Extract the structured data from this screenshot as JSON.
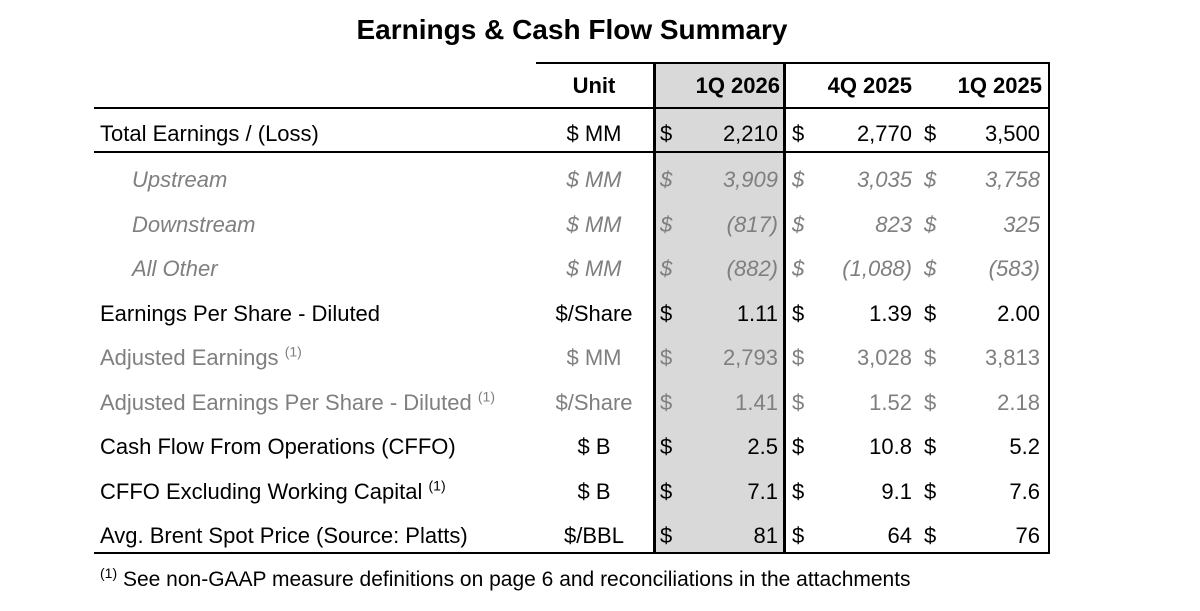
{
  "title": "Earnings & Cash Flow Summary",
  "headers": {
    "unit": "Unit",
    "col1": "1Q 2026",
    "col2": "4Q 2025",
    "col3": "1Q 2025"
  },
  "rows": [
    {
      "label": "Total Earnings / (Loss)",
      "sup": "",
      "unit": "$ MM",
      "d": "$",
      "v1": "2,210",
      "v2": "2,770",
      "v3": "3,500",
      "style": "normal"
    },
    {
      "label": "Upstream",
      "sup": "",
      "unit": "$ MM",
      "d": "$",
      "v1": "3,909",
      "v2": "3,035",
      "v3": "3,758",
      "style": "sub"
    },
    {
      "label": "Downstream",
      "sup": "",
      "unit": "$ MM",
      "d": "$",
      "v1": "(817)",
      "v2": "823",
      "v3": "325",
      "style": "sub"
    },
    {
      "label": "All Other",
      "sup": "",
      "unit": "$ MM",
      "d": "$",
      "v1": "(882)",
      "v2": "(1,088)",
      "v3": "(583)",
      "style": "sub"
    },
    {
      "label": "Earnings Per Share - Diluted",
      "sup": "",
      "unit": "$/Share",
      "d": "$",
      "v1": "1.11",
      "v2": "1.39",
      "v3": "2.00",
      "style": "normal"
    },
    {
      "label": "Adjusted Earnings",
      "sup": "(1)",
      "unit": "$ MM",
      "d": "$",
      "v1": "2,793",
      "v2": "3,028",
      "v3": "3,813",
      "style": "grey"
    },
    {
      "label": "Adjusted Earnings Per Share - Diluted",
      "sup": "(1)",
      "unit": "$/Share",
      "d": "$",
      "v1": "1.41",
      "v2": "1.52",
      "v3": "2.18",
      "style": "grey"
    },
    {
      "label": "Cash Flow From Operations (CFFO)",
      "sup": "",
      "unit": "$ B",
      "d": "$",
      "v1": "2.5",
      "v2": "10.8",
      "v3": "5.2",
      "style": "normal"
    },
    {
      "label": "CFFO Excluding Working Capital",
      "sup": "(1)",
      "unit": "$ B",
      "d": "$",
      "v1": "7.1",
      "v2": "9.1",
      "v3": "7.6",
      "style": "normal"
    },
    {
      "label": "Avg. Brent Spot Price (Source: Platts)",
      "sup": "",
      "unit": "$/BBL",
      "d": "$",
      "v1": "81",
      "v2": "64",
      "v3": "76",
      "style": "normal"
    }
  ],
  "footnote": {
    "sup": "(1)",
    "text": " See non-GAAP measure definitions on page 6 and reconciliations in the attachments"
  }
}
